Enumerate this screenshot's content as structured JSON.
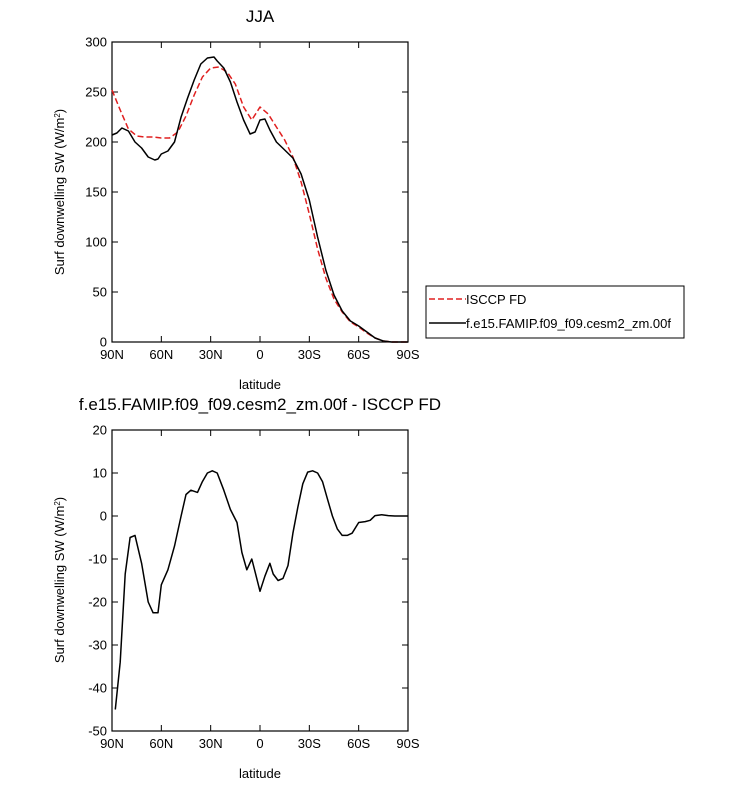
{
  "chart_data": [
    {
      "type": "line",
      "title": "JJA",
      "xlabel": "latitude",
      "ylabel_main": "Surf downwelling SW (W/m",
      "ylabel_sup": "2",
      "ylabel_end": ")",
      "xlim": [
        90,
        -90
      ],
      "ylim": [
        0,
        300
      ],
      "xticks": [
        90,
        60,
        30,
        0,
        -30,
        -60,
        -90
      ],
      "xtick_labels": [
        "90N",
        "60N",
        "30N",
        "0",
        "30S",
        "60S",
        "90S"
      ],
      "yticks": [
        0,
        50,
        100,
        150,
        200,
        250,
        300
      ],
      "ytick_labels": [
        "0",
        "50",
        "100",
        "150",
        "200",
        "250",
        "300"
      ],
      "legend": {
        "placement": "right, outside plot",
        "entries": [
          "ISCCP FD",
          "f.e15.FAMIP.f09_f09.cesm2_zm.00f"
        ]
      },
      "series": [
        {
          "name": "ISCCP FD",
          "color": "#e02020",
          "dash": "dashed",
          "x": [
            90,
            85,
            80,
            75,
            70,
            65,
            60,
            55,
            50,
            45,
            40,
            35,
            30,
            25,
            20,
            15,
            10,
            5,
            0,
            -5,
            -10,
            -15,
            -20,
            -25,
            -30,
            -35,
            -40,
            -45,
            -50,
            -55,
            -60,
            -65,
            -70,
            -75,
            -80,
            -85,
            -90
          ],
          "y": [
            252,
            232,
            213,
            206,
            205,
            205,
            204,
            204,
            210,
            226,
            247,
            265,
            274,
            275,
            270,
            258,
            235,
            222,
            235,
            228,
            215,
            202,
            185,
            160,
            128,
            93,
            64,
            43,
            30,
            20,
            15,
            9,
            4,
            1,
            0,
            0,
            0
          ]
        },
        {
          "name": "f.e15.FAMIP.f09_f09.cesm2_zm.00f",
          "color": "#000000",
          "dash": "solid",
          "x": [
            90,
            87,
            84,
            80,
            76,
            72,
            68,
            64,
            62,
            60,
            56,
            52,
            48,
            44,
            40,
            36,
            32,
            28,
            26,
            22,
            18,
            14,
            10,
            6,
            3,
            0,
            -3,
            -6,
            -10,
            -15,
            -20,
            -25,
            -30,
            -35,
            -40,
            -45,
            -50,
            -55,
            -60,
            -65,
            -70,
            -75,
            -80,
            -85,
            -90
          ],
          "y": [
            207,
            209,
            214,
            211,
            200,
            194,
            185,
            182,
            183,
            188,
            191,
            200,
            225,
            244,
            262,
            278,
            284,
            285,
            281,
            274,
            260,
            240,
            222,
            208,
            210,
            222,
            223,
            212,
            200,
            192,
            184,
            168,
            142,
            105,
            72,
            47,
            31,
            21,
            16,
            10,
            4,
            1,
            0,
            0,
            0
          ]
        }
      ]
    },
    {
      "type": "line",
      "title": "f.e15.FAMIP.f09_f09.cesm2_zm.00f - ISCCP FD",
      "xlabel": "latitude",
      "ylabel_main": "Surf downwelling SW (W/m",
      "ylabel_sup": "2",
      "ylabel_end": ")",
      "xlim": [
        90,
        -90
      ],
      "ylim": [
        -50,
        20
      ],
      "xticks": [
        90,
        60,
        30,
        0,
        -30,
        -60,
        -90
      ],
      "xtick_labels": [
        "90N",
        "60N",
        "30N",
        "0",
        "30S",
        "60S",
        "90S"
      ],
      "yticks": [
        -50,
        -40,
        -30,
        -20,
        -10,
        0,
        10,
        20
      ],
      "ytick_labels": [
        "-50",
        "-40",
        "-30",
        "-20",
        "-10",
        "0",
        "10",
        "20"
      ],
      "series": [
        {
          "color": "#000000",
          "dash": "solid",
          "x": [
            88,
            85,
            82,
            79,
            76,
            72,
            68,
            65,
            62,
            60,
            56,
            52,
            48,
            45,
            42,
            38,
            35,
            32,
            29,
            26,
            22,
            18,
            14,
            11,
            8,
            5,
            3,
            0,
            -3,
            -6,
            -8,
            -11,
            -14,
            -17,
            -20,
            -23,
            -26,
            -29,
            -32,
            -35,
            -38,
            -41,
            -44,
            -47,
            -50,
            -53,
            -56,
            -60,
            -64,
            -67,
            -70,
            -74,
            -78,
            -82,
            -86,
            -90
          ],
          "y": [
            -45,
            -34,
            -13.5,
            -5,
            -4.5,
            -11,
            -20,
            -22.5,
            -22.5,
            -16,
            -12.5,
            -7,
            0,
            5,
            6,
            5.5,
            8,
            10,
            10.5,
            10,
            6,
            1.5,
            -1.5,
            -8.5,
            -12.5,
            -10,
            -13,
            -17.5,
            -14,
            -11,
            -13.5,
            -15,
            -14.5,
            -11.5,
            -4,
            2,
            7.5,
            10.2,
            10.5,
            10,
            8,
            4,
            0,
            -3,
            -4.5,
            -4.5,
            -4,
            -1.5,
            -1.3,
            -1,
            0.1,
            0.3,
            0.1,
            0,
            0,
            0
          ]
        }
      ]
    }
  ]
}
